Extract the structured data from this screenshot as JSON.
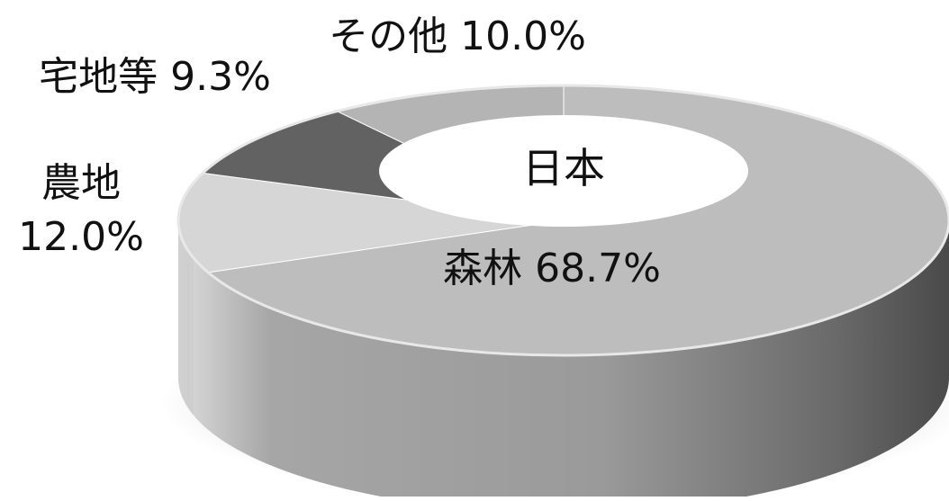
{
  "chart_data": {
    "type": "pie",
    "center_label": "日本",
    "slices": [
      {
        "name": "森林",
        "value": 68.7,
        "label": "森林 68.7%",
        "color": "#bdbdbd"
      },
      {
        "name": "農地",
        "value": 12.0,
        "label": "農地",
        "label_value": "12.0%",
        "color": "#d6d6d6"
      },
      {
        "name": "宅地等",
        "value": 9.3,
        "label": "宅地等 9.3%",
        "color": "#626262"
      },
      {
        "name": "その他",
        "value": 10.0,
        "label": "その他 10.0%",
        "color": "#b4b4b4"
      }
    ]
  }
}
